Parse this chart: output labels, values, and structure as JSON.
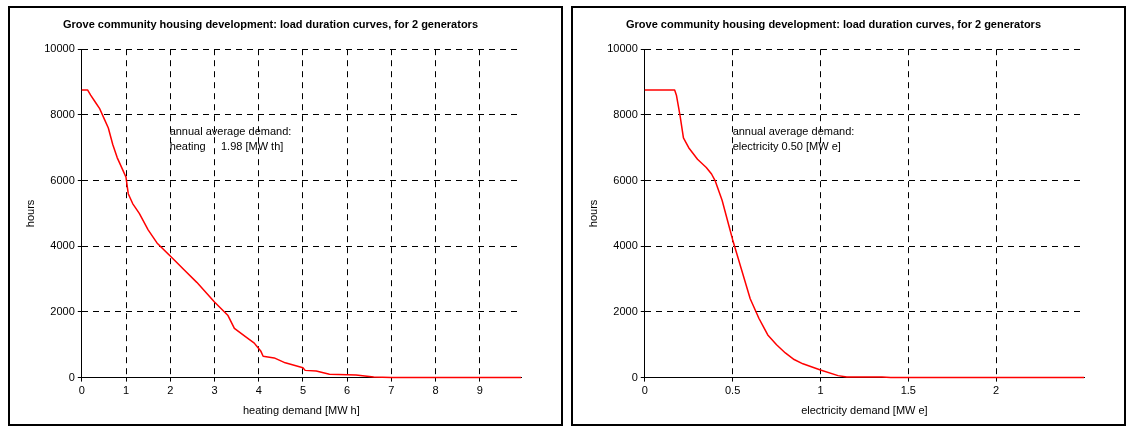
{
  "chart_data": [
    {
      "type": "line",
      "title": "Grove community housing development: load duration curves, for 2 generators",
      "xlabel": "heating demand [MW h]",
      "ylabel": "hours",
      "annotations": [
        "annual average demand:",
        "heating     1.98 [MW th]"
      ],
      "xlim": [
        0,
        9.93
      ],
      "xticks": [
        0,
        1,
        2,
        3,
        4,
        5,
        6,
        7,
        8,
        9
      ],
      "ylim": [
        0,
        10000
      ],
      "yticks": [
        0,
        2000,
        4000,
        6000,
        8000,
        10000
      ],
      "grid": true,
      "line_style": "solid",
      "series": [
        {
          "color": "#ff0000",
          "x": [
            0,
            0.13,
            0.2,
            0.3,
            0.4,
            0.5,
            0.6,
            0.7,
            0.8,
            0.9,
            1.0,
            1.05,
            1.15,
            1.3,
            1.5,
            1.7,
            2.0,
            2.3,
            2.6,
            3.0,
            3.3,
            3.45,
            3.7,
            3.9,
            4.05,
            4.1,
            4.35,
            4.6,
            5.0,
            5.05,
            5.3,
            5.6,
            6.2,
            6.6,
            7.0,
            9.93
          ],
          "values": [
            8760,
            8760,
            8600,
            8400,
            8200,
            7900,
            7600,
            7100,
            6700,
            6400,
            6100,
            5600,
            5300,
            5000,
            4500,
            4100,
            3700,
            3300,
            2900,
            2300,
            1900,
            1500,
            1250,
            1050,
            800,
            650,
            600,
            450,
            300,
            220,
            200,
            100,
            80,
            20,
            0,
            0
          ]
        }
      ]
    },
    {
      "type": "line",
      "title": "Grove community housing development: load duration curves, for 2 generators",
      "xlabel": "electricity demand [MW e]",
      "ylabel": "hours",
      "annotations": [
        "annual average demand:",
        "electricity 0.50 [MW e]"
      ],
      "xlim": [
        0,
        2.5
      ],
      "xticks": [
        0,
        0.5,
        1,
        1.5,
        2
      ],
      "ylim": [
        0,
        10000
      ],
      "yticks": [
        0,
        2000,
        4000,
        6000,
        8000,
        10000
      ],
      "grid": true,
      "line_style": "solid",
      "series": [
        {
          "color": "#ff0000",
          "x": [
            0,
            0.17,
            0.18,
            0.2,
            0.22,
            0.25,
            0.3,
            0.35,
            0.38,
            0.4,
            0.44,
            0.48,
            0.5,
            0.55,
            0.6,
            0.65,
            0.7,
            0.75,
            0.8,
            0.85,
            0.9,
            1.0,
            1.1,
            1.15,
            1.35,
            1.4,
            2.5
          ],
          "values": [
            8760,
            8760,
            8600,
            8000,
            7300,
            7000,
            6650,
            6400,
            6200,
            6000,
            5400,
            4600,
            4200,
            3300,
            2400,
            1800,
            1300,
            1000,
            750,
            550,
            420,
            230,
            60,
            20,
            20,
            0,
            0
          ]
        }
      ]
    }
  ]
}
